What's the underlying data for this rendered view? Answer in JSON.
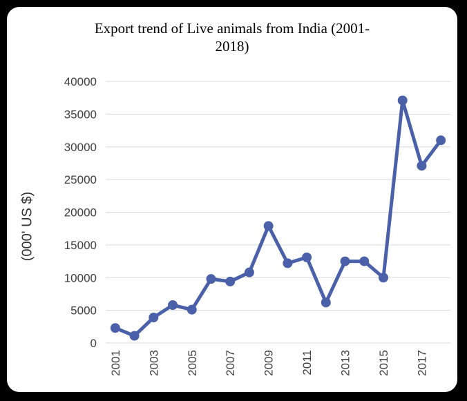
{
  "chart_data": {
    "type": "line",
    "title_line1": "Export trend of Live animals from India (2001-",
    "title_line2": "2018)",
    "ylabel": "(000' US $)",
    "xlabel": "",
    "ylim": [
      0,
      40000
    ],
    "yticks": [
      0,
      5000,
      10000,
      15000,
      20000,
      25000,
      30000,
      35000,
      40000
    ],
    "x": [
      2001,
      2002,
      2003,
      2004,
      2005,
      2006,
      2007,
      2008,
      2009,
      2010,
      2011,
      2012,
      2013,
      2014,
      2015,
      2016,
      2017,
      2018
    ],
    "xtick_labels": [
      "2001",
      "2003",
      "2005",
      "2007",
      "2009",
      "2011",
      "2013",
      "2015",
      "2017"
    ],
    "series": [
      {
        "values": [
          2300,
          1100,
          3900,
          5800,
          5100,
          9800,
          9400,
          10800,
          17900,
          12200,
          13100,
          6200,
          12500,
          12500,
          10000,
          37100,
          27100,
          31000
        ],
        "color": "#4a60a8"
      }
    ],
    "grid": true,
    "legend": "none"
  }
}
